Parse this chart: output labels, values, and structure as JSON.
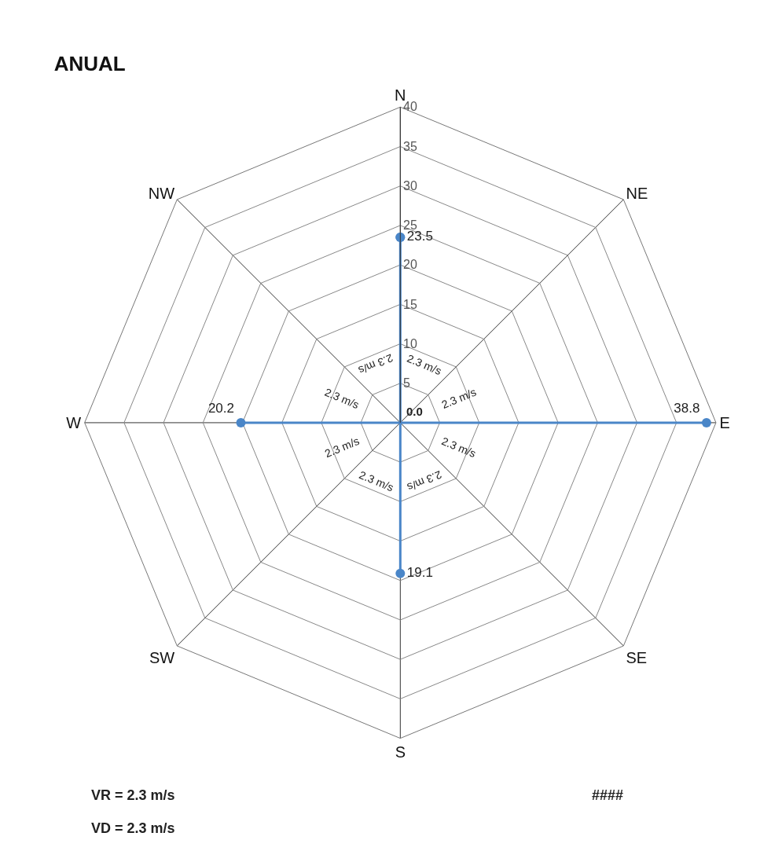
{
  "chart_data": {
    "type": "radar",
    "title": "ANUAL",
    "categories": [
      "N",
      "NE",
      "E",
      "SE",
      "S",
      "SW",
      "W",
      "NW"
    ],
    "series": [
      {
        "color": "#4a86c8",
        "values": [
          23.5,
          0.0,
          38.8,
          0.0,
          19.1,
          0.0,
          20.2,
          0.0
        ],
        "value_labels": [
          "23.5",
          "0.0",
          "38.8",
          null,
          "19.1",
          null,
          "20.2",
          null
        ]
      }
    ],
    "ylim": [
      0,
      40
    ],
    "yticks": [
      5,
      10,
      15,
      20,
      25,
      30,
      35,
      40
    ],
    "marker": "circle",
    "line_style": "solid",
    "grid": true,
    "annotations": [
      "2.3 m/s",
      "2.3 m/s",
      "2.3 m/s",
      "2.3 m/s",
      "2.3 m/s",
      "2.3 m/s",
      "2.3 m/s",
      "2.3 m/s",
      "VR = 2.3 m/s",
      "VD = 2.3 m/s",
      "####"
    ]
  }
}
